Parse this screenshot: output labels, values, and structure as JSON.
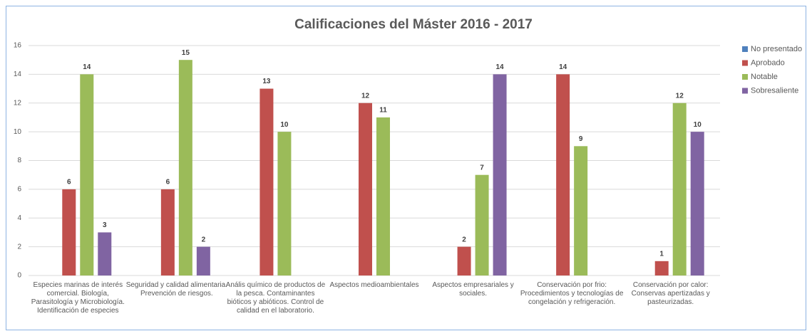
{
  "chart_data": {
    "type": "bar",
    "title": "Calificaciones del Máster  2016 - 2017",
    "categories": [
      "Especies marinas de interés comercial. Biología, Parasitología y Microbiología. Identificación de especies",
      "Seguridad y calidad alimentaria. Prevención de riesgos.",
      "Anális químico de productos de la pesca. Contaminantes bióticos y abióticos. Control de calidad en el laboratorio.",
      "Aspectos medioambientales",
      "Aspectos empresariales y sociales.",
      "Conservación por frio: Procedimientos y tecnologías de congelación y refrigeración.",
      "Conservación por calor: Conservas apertizadas y pasteurizadas."
    ],
    "series": [
      {
        "name": "No presentado",
        "color": "#4f81bd",
        "values": [
          null,
          null,
          null,
          null,
          null,
          null,
          null
        ]
      },
      {
        "name": "Aprobado",
        "color": "#c0504d",
        "values": [
          6,
          6,
          13,
          12,
          2,
          14,
          1
        ]
      },
      {
        "name": "Notable",
        "color": "#9bbb59",
        "values": [
          14,
          15,
          10,
          11,
          7,
          9,
          12
        ]
      },
      {
        "name": "Sobresaliente",
        "color": "#8064a2",
        "values": [
          3,
          2,
          null,
          null,
          14,
          null,
          10
        ]
      }
    ],
    "ylim": [
      0,
      16
    ],
    "yticks": [
      0,
      2,
      4,
      6,
      8,
      10,
      12,
      14,
      16
    ],
    "grid": true,
    "legend": "right"
  }
}
